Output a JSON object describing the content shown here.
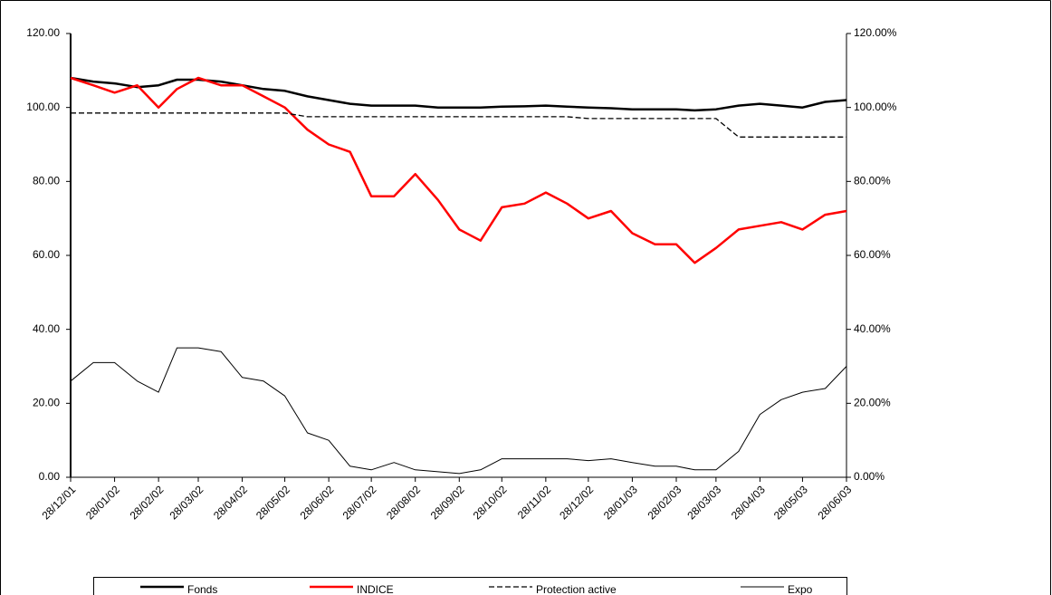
{
  "chart_data": {
    "type": "line",
    "x": [
      "28/12/01",
      "13/01/02",
      "28/01/02",
      "13/02/02",
      "28/02/02",
      "13/03/02",
      "28/03/02",
      "13/04/02",
      "28/04/02",
      "13/05/02",
      "28/05/02",
      "13/06/02",
      "28/06/02",
      "13/07/02",
      "28/07/02",
      "13/08/02",
      "28/08/02",
      "13/09/02",
      "28/09/02",
      "13/10/02",
      "28/10/02",
      "13/11/02",
      "28/11/02",
      "13/12/02",
      "28/12/02",
      "13/01/03",
      "28/01/03",
      "13/02/03",
      "28/02/03",
      "13/03/03",
      "28/03/03",
      "13/04/03",
      "28/04/03",
      "13/05/03",
      "28/05/03",
      "13/06/03",
      "28/06/03"
    ],
    "series": [
      {
        "name": "Fonds",
        "color": "#000000",
        "style": "thick",
        "values": [
          108,
          107,
          106.5,
          105.5,
          106,
          107.5,
          107.5,
          107,
          106,
          105,
          104.5,
          103,
          102,
          101,
          100.5,
          100.5,
          100.5,
          100,
          100,
          100,
          100.2,
          100.3,
          100.5,
          100.2,
          100,
          99.8,
          99.5,
          99.5,
          99.5,
          99.2,
          99.5,
          100.5,
          101,
          100.5,
          100,
          101.5,
          102
        ]
      },
      {
        "name": "INDICE",
        "color": "#ff0000",
        "style": "thick",
        "values": [
          108,
          106,
          104,
          106,
          100,
          105,
          108,
          106,
          106,
          103,
          100,
          94,
          90,
          88,
          76,
          76,
          82,
          75,
          67,
          64,
          73,
          74,
          77,
          74,
          70,
          72,
          66,
          63,
          63,
          58,
          62,
          67,
          68,
          69,
          67,
          71,
          72
        ]
      },
      {
        "name": "Protection active",
        "color": "#000000",
        "style": "dashed",
        "values": [
          98.5,
          98.5,
          98.5,
          98.5,
          98.5,
          98.5,
          98.5,
          98.5,
          98.5,
          98.5,
          98.5,
          97.5,
          97.5,
          97.5,
          97.5,
          97.5,
          97.5,
          97.5,
          97.5,
          97.5,
          97.5,
          97.5,
          97.5,
          97.5,
          97,
          97,
          97,
          97,
          97,
          97,
          97,
          92,
          92,
          92,
          92,
          92,
          92
        ]
      },
      {
        "name": "Expo",
        "color": "#000000",
        "style": "thin",
        "axis": "y2",
        "values": [
          26,
          31,
          31,
          26,
          23,
          35,
          35,
          34,
          27,
          26,
          22,
          12,
          10,
          3,
          2,
          4,
          2,
          1.5,
          1,
          2,
          5,
          5,
          5,
          5,
          4.5,
          5,
          4,
          3,
          3,
          2,
          2,
          7,
          17,
          21,
          23,
          24,
          30
        ]
      }
    ],
    "xlim": [
      "28/12/01",
      "28/06/03"
    ],
    "xticks": [
      "28/12/01",
      "28/01/02",
      "28/02/02",
      "28/03/02",
      "28/04/02",
      "28/05/02",
      "28/06/02",
      "28/07/02",
      "28/08/02",
      "28/09/02",
      "28/10/02",
      "28/11/02",
      "28/12/02",
      "28/01/03",
      "28/02/03",
      "28/03/03",
      "28/04/03",
      "28/05/03",
      "28/06/03"
    ],
    "ylim": [
      0,
      120
    ],
    "yticks": [
      {
        "value": 0,
        "label": "0.00"
      },
      {
        "value": 20,
        "label": "20.00"
      },
      {
        "value": 40,
        "label": "40.00"
      },
      {
        "value": 60,
        "label": "60.00"
      },
      {
        "value": 80,
        "label": "80.00"
      },
      {
        "value": 100,
        "label": "100.00"
      },
      {
        "value": 120,
        "label": "120.00"
      }
    ],
    "y2lim": [
      0,
      120
    ],
    "y2ticks": [
      {
        "value": 0,
        "label": "0.00%"
      },
      {
        "value": 20,
        "label": "20.00%"
      },
      {
        "value": 40,
        "label": "40.00%"
      },
      {
        "value": 60,
        "label": "60.00%"
      },
      {
        "value": 80,
        "label": "80.00%"
      },
      {
        "value": 100,
        "label": "100.00%"
      },
      {
        "value": 120,
        "label": "120.00%"
      }
    ],
    "legend": "bottom"
  }
}
